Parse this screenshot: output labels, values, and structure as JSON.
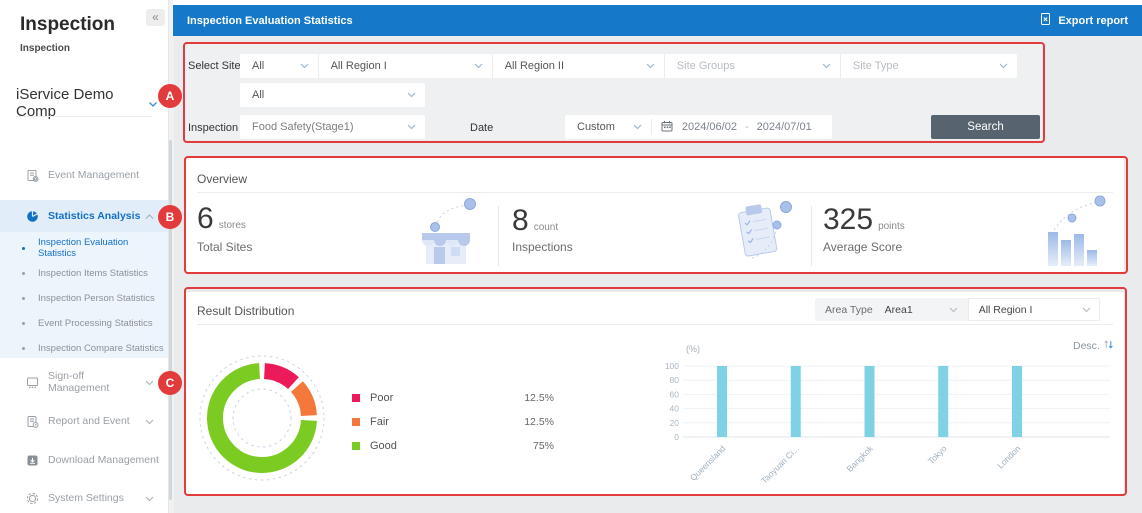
{
  "sidebar": {
    "brand_title": "Inspection",
    "brand_subtitle": "Inspection",
    "collapse_glyph": "«",
    "company": "iService Demo Comp",
    "menu": [
      {
        "label": "Event Management"
      },
      {
        "label": "Statistics Analysis"
      },
      {
        "label": "Sign-off Management"
      },
      {
        "label": "Report and Event"
      },
      {
        "label": "Download Management"
      },
      {
        "label": "System Settings"
      }
    ],
    "submenu": [
      "Inspection Evaluation Statistics",
      "Inspection Items Statistics",
      "Inspection Person Statistics",
      "Event Processing Statistics",
      "Inspection Compare Statistics"
    ]
  },
  "topbar": {
    "title": "Inspection Evaluation Statistics",
    "export_label": "Export report"
  },
  "filters": {
    "select_site_label": "Select Site",
    "site_dropdowns": [
      "All",
      "All Region I",
      "All Region II",
      "Site Groups",
      "Site Type"
    ],
    "row2_value": "All",
    "inspection_list_label": "Inspection List",
    "inspection_list_value": "Food Safety(Stage1)",
    "date_label": "Date",
    "date_mode": "Custom",
    "date_from": "2024/06/02",
    "date_separator": "-",
    "date_to": "2024/07/01",
    "search_label": "Search"
  },
  "overview": {
    "title": "Overview",
    "stats": [
      {
        "value": "6",
        "unit": "stores",
        "label": "Total Sites"
      },
      {
        "value": "8",
        "unit": "count",
        "label": "Inspections"
      },
      {
        "value": "325",
        "unit": "points",
        "label": "Average Score"
      }
    ]
  },
  "result": {
    "title": "Result Distribution",
    "area_type_label": "Area Type",
    "area_type_value": "Area1",
    "region_value": "All Region I",
    "sort_label": "Desc."
  },
  "chart_data": [
    {
      "type": "pie",
      "subtype": "donut",
      "series": [
        {
          "name": "Poor",
          "value": 12.5,
          "display": "12.5%",
          "color": "#ed1a59"
        },
        {
          "name": "Fair",
          "value": 12.5,
          "display": "12.5%",
          "color": "#f4783b"
        },
        {
          "name": "Good",
          "value": 75,
          "display": "75%",
          "color": "#7ccb22"
        }
      ],
      "start_angle_deg": 0,
      "direction": "clockwise",
      "legend_position": "right"
    },
    {
      "type": "bar",
      "ylabel": "(%)",
      "categories": [
        "Queensland",
        "Taoyuan Ci...",
        "Bangkok",
        "Tokyo",
        "London"
      ],
      "values": [
        100,
        100,
        100,
        100,
        100
      ],
      "ylim": [
        0,
        100
      ],
      "yticks": [
        0,
        20,
        40,
        60,
        80,
        100
      ],
      "bar_color": "#7fd2e4",
      "grid": true,
      "sort": "Desc."
    }
  ],
  "annotations": {
    "labels": [
      "A",
      "B",
      "C"
    ],
    "color": "#e23b3b"
  }
}
